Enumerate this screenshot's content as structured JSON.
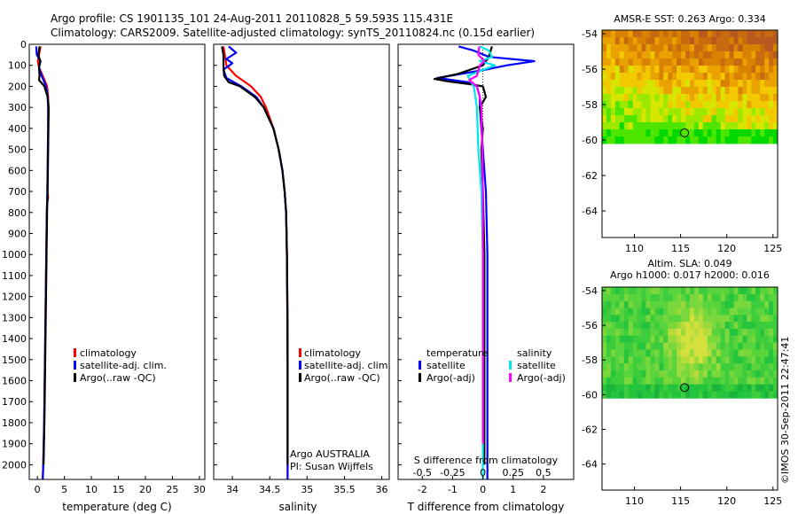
{
  "title": {
    "line1": "Argo profile: CS 1901135_101 24-Aug-2011 20110828_5 59.593S 115.431E",
    "line2": "Climatology: CARS2009. Satellite-adjusted climatology: synTS_20110824.nc (0.15d earlier)"
  },
  "credit": "©IMOS 30-Sep-2011 22:47:41",
  "colors": {
    "red": "#ff0000",
    "blue": "#0000ff",
    "black": "#000000",
    "cyan": "#00e5ee",
    "magenta": "#ff00ff"
  },
  "chart_data": [
    {
      "type": "line",
      "panel": "temperature",
      "xlabel": "temperature (deg C)",
      "xlim": [
        -1.5,
        31
      ],
      "xticks": [
        0,
        5,
        10,
        15,
        20,
        25,
        30
      ],
      "ylim": [
        2070,
        0
      ],
      "yticks": [
        0,
        100,
        200,
        300,
        400,
        500,
        600,
        700,
        800,
        900,
        1000,
        1100,
        1200,
        1300,
        1400,
        1500,
        1600,
        1700,
        1800,
        1900,
        2000
      ],
      "legend": [
        "climatology",
        "satellite-adj. clim.",
        "Argo(..raw -QC)"
      ],
      "series": [
        {
          "name": "climatology",
          "color": "red",
          "depth": [
            10,
            50,
            80,
            110,
            150,
            200,
            250,
            300,
            400,
            500,
            600,
            700,
            730,
            760,
            800,
            1000,
            1200,
            1400,
            1600,
            1800,
            2000,
            2070
          ],
          "values": [
            0.6,
            0.3,
            0.1,
            0.3,
            1.0,
            1.8,
            2.0,
            2.05,
            2.0,
            1.95,
            1.9,
            1.85,
            2.0,
            1.8,
            1.75,
            1.65,
            1.55,
            1.45,
            1.35,
            1.25,
            1.1,
            1.0
          ]
        },
        {
          "name": "satellite-adj. clim.",
          "color": "blue",
          "depth": [
            10,
            50,
            80,
            110,
            150,
            200,
            250,
            300,
            400,
            500,
            600,
            700,
            800,
            1000,
            1200,
            1400,
            1600,
            1800,
            2000,
            2070
          ],
          "values": [
            -0.2,
            -0.1,
            0.6,
            0.3,
            0.8,
            1.6,
            1.9,
            2.0,
            2.0,
            1.95,
            1.9,
            1.85,
            1.75,
            1.65,
            1.55,
            1.45,
            1.35,
            1.25,
            1.1,
            1.0
          ]
        },
        {
          "name": "Argo(..raw -QC)",
          "color": "black",
          "depth": [
            10,
            50,
            80,
            110,
            150,
            170,
            200,
            250,
            300,
            400,
            500,
            600,
            700,
            800,
            1000,
            1200,
            1400,
            1600,
            1800,
            2000
          ],
          "values": [
            0.4,
            0.2,
            0.5,
            0.3,
            0.4,
            0.3,
            1.3,
            1.9,
            2.1,
            2.05,
            2.0,
            1.95,
            1.9,
            1.8,
            1.7,
            1.6,
            1.5,
            1.4,
            1.3,
            1.15
          ]
        }
      ]
    },
    {
      "type": "line",
      "panel": "salinity",
      "xlabel": "salinity",
      "xticks": [
        34,
        34.5,
        35,
        35.5,
        36
      ],
      "xlim": [
        33.75,
        36.1
      ],
      "ylim": [
        2070,
        0
      ],
      "legend": [
        "climatology",
        "satellite-adj. clim.",
        "Argo(..raw -QC)"
      ],
      "annotation": [
        "Argo AUSTRALIA",
        "PI: Susan Wijffels"
      ],
      "series": [
        {
          "name": "climatology",
          "color": "red",
          "depth": [
            10,
            50,
            100,
            150,
            200,
            250,
            300,
            400,
            500,
            600,
            700,
            800,
            1000,
            1200,
            1500,
            1800,
            2070
          ],
          "values": [
            33.88,
            33.9,
            33.92,
            34.05,
            34.25,
            34.38,
            34.45,
            34.55,
            34.62,
            34.67,
            34.7,
            34.72,
            34.73,
            34.735,
            34.74,
            34.74,
            34.74
          ]
        },
        {
          "name": "satellite-adj. clim.",
          "color": "blue",
          "depth": [
            10,
            40,
            70,
            90,
            120,
            160,
            200,
            250,
            300,
            400,
            500,
            600,
            700,
            800,
            1000,
            1200,
            1500,
            1800,
            2070
          ],
          "values": [
            33.95,
            34.05,
            33.92,
            34.0,
            33.88,
            33.92,
            34.12,
            34.32,
            34.42,
            34.55,
            34.62,
            34.67,
            34.7,
            34.72,
            34.73,
            34.735,
            34.74,
            34.74,
            34.74
          ]
        },
        {
          "name": "Argo(..raw -QC)",
          "color": "black",
          "depth": [
            10,
            50,
            100,
            150,
            180,
            200,
            250,
            300,
            400,
            500,
            600,
            700,
            800,
            1000,
            1200,
            1500,
            1800,
            2000
          ],
          "values": [
            33.86,
            33.88,
            33.88,
            33.89,
            33.95,
            34.1,
            34.3,
            34.42,
            34.55,
            34.62,
            34.67,
            34.7,
            34.72,
            34.73,
            34.735,
            34.74,
            34.74,
            34.74
          ]
        }
      ]
    },
    {
      "type": "line",
      "panel": "difference",
      "xlabel": "T difference from climatology",
      "xlabel_top": "S difference from climatology",
      "xticks_T": [
        -2,
        -1,
        0,
        1,
        2
      ],
      "xticks_S": [
        -0.5,
        -0.25,
        0,
        0.25,
        0.5
      ],
      "xlim": [
        -2.8,
        3.0
      ],
      "ylim": [
        2070,
        0
      ],
      "legend_headers": [
        "temperature",
        "salinity"
      ],
      "legend": [
        "satellite",
        "Argo(-adj)",
        "satellite",
        "Argo(-adj)"
      ],
      "series": [
        {
          "name": "satellite",
          "quantity": "temperature",
          "color": "blue",
          "depth": [
            10,
            30,
            60,
            80,
            100,
            120,
            160,
            180,
            200,
            250,
            300,
            500,
            700,
            1000,
            1500,
            1800,
            2070
          ],
          "values": [
            -0.8,
            -0.3,
            0.2,
            1.7,
            0.8,
            0.1,
            -1.5,
            -0.5,
            -0.2,
            -0.1,
            -0.1,
            0.0,
            0.1,
            0.15,
            0.15,
            0.15,
            0.15
          ]
        },
        {
          "name": "Argo(-adj)",
          "quantity": "temperature",
          "color": "black",
          "depth": [
            10,
            60,
            100,
            140,
            165,
            175,
            190,
            200,
            250,
            300,
            400,
            500,
            700,
            1000,
            1500,
            1800,
            2000
          ],
          "values": [
            0.3,
            0.2,
            0.0,
            -0.8,
            -1.6,
            -1.2,
            -0.4,
            0.0,
            0.1,
            -0.1,
            0.0,
            -0.05,
            0.0,
            0.05,
            0.05,
            0.05,
            0.05
          ]
        },
        {
          "name": "satellite",
          "quantity": "salinity",
          "color": "cyan",
          "depth": [
            10,
            30,
            60,
            80,
            100,
            150,
            200,
            250,
            300,
            500,
            700,
            1000,
            1500,
            2070
          ],
          "values": [
            -0.1,
            0.2,
            0.3,
            -0.1,
            0.4,
            -0.5,
            -0.3,
            -0.25,
            -0.2,
            -0.15,
            -0.05,
            0.0,
            0.0,
            0.0
          ]
        },
        {
          "name": "Argo(-adj)",
          "quantity": "salinity",
          "color": "magenta",
          "depth": [
            10,
            50,
            80,
            100,
            150,
            170,
            200,
            250,
            300,
            500,
            700,
            1000,
            1500,
            1900
          ],
          "values": [
            -0.12,
            -0.15,
            0.05,
            -0.1,
            -0.2,
            -0.45,
            -0.2,
            -0.1,
            -0.05,
            -0.02,
            0.0,
            0.0,
            0.0,
            0.0
          ]
        }
      ]
    },
    {
      "type": "heatmap",
      "panel": "sst",
      "title": "AMSR-E SST: 0.263 Argo: 0.334",
      "xticks": [
        110,
        115,
        120,
        125
      ],
      "yticks": [
        -54,
        -56,
        -58,
        -60,
        -62,
        -64
      ],
      "xlim": [
        106.5,
        125.5
      ],
      "ylim": [
        -65.5,
        -53.8
      ],
      "data_ylim": [
        -60.2,
        -53.8
      ],
      "marker": {
        "lon": 115.431,
        "lat": -59.593
      }
    },
    {
      "type": "heatmap",
      "panel": "sla",
      "title_lines": [
        "Altim. SLA: 0.049",
        "Argo h1000: 0.017 h2000: 0.016"
      ],
      "xticks": [
        110,
        115,
        120,
        125
      ],
      "yticks": [
        -54,
        -56,
        -58,
        -60,
        -62,
        -64
      ],
      "xlim": [
        106.5,
        125.5
      ],
      "ylim": [
        -65.5,
        -53.8
      ],
      "data_ylim": [
        -60.2,
        -53.8
      ],
      "marker": {
        "lon": 115.431,
        "lat": -59.593
      }
    }
  ]
}
